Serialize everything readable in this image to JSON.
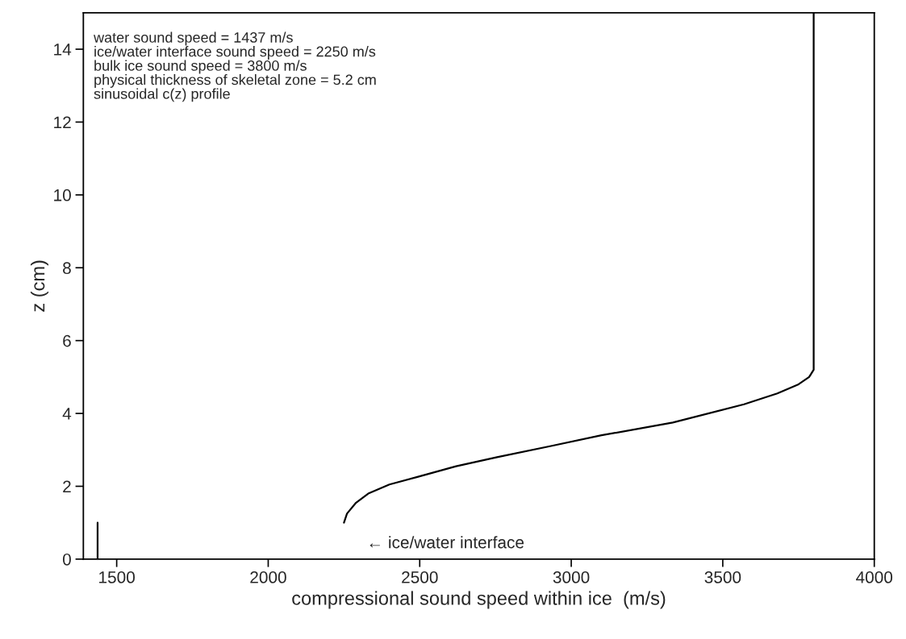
{
  "chart_data": {
    "type": "line",
    "xlabel": "compressional sound speed within ice  (m/s)",
    "ylabel": "z (cm)",
    "xlim": [
      1390,
      4000
    ],
    "xticks": [
      1500,
      2000,
      2500,
      3000,
      3500,
      4000
    ],
    "ylim": [
      0,
      15
    ],
    "yticks": [
      0,
      2,
      4,
      6,
      8,
      10,
      12,
      14
    ],
    "grid": false,
    "legend": false,
    "marker": "none",
    "line_style": "solid",
    "series": [
      {
        "color": "#000000",
        "x": [
          1437,
          1437
        ],
        "values": [
          0,
          1
        ]
      },
      {
        "color": "#000000",
        "x": [
          2250,
          2260,
          2290,
          2330,
          2400,
          2490,
          2620,
          2755,
          2930,
          3100,
          3335,
          3570,
          3680,
          3750,
          3785,
          3800,
          3800
        ],
        "values": [
          1.0,
          1.25,
          1.55,
          1.8,
          2.05,
          2.25,
          2.55,
          2.8,
          3.1,
          3.4,
          3.75,
          4.25,
          4.55,
          4.8,
          5.0,
          5.2,
          15
        ]
      }
    ],
    "annotations": [
      "water sound speed = 1437 m/s\nice/water interface sound speed = 2250 m/s\nbulk ice sound speed = 3800 m/s\nphysical thickness of skeletal zone = 5.2 cm\nsinusoidal c(z) profile",
      "← ice/water interface"
    ]
  }
}
